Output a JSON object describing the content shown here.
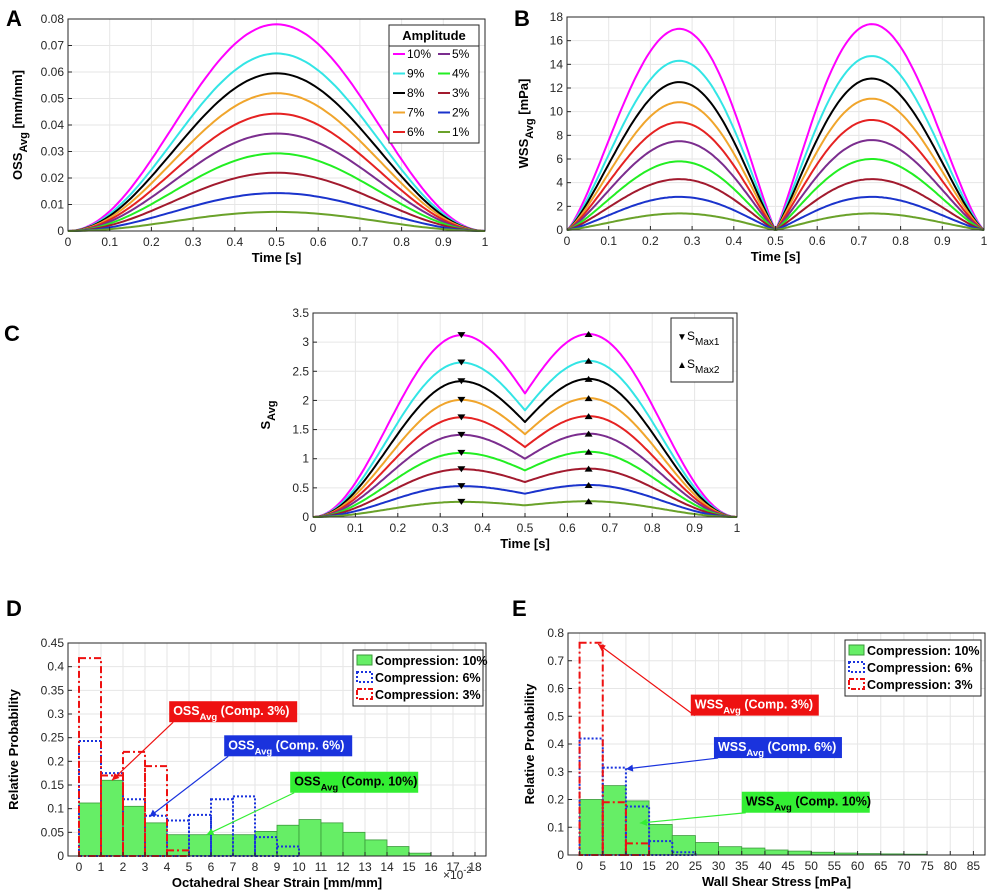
{
  "chart_data": [
    {
      "panel": "A",
      "type": "line",
      "xlabel": "Time [s]",
      "ylabel": "OSS",
      "ylabel_sub": "Avg",
      "ylabel_unit": " [mm/mm]",
      "xlim": [
        0,
        1
      ],
      "ylim": [
        0,
        0.08
      ],
      "xticks": [
        "0",
        "0.1",
        "0.2",
        "0.3",
        "0.4",
        "0.5",
        "0.6",
        "0.7",
        "0.8",
        "0.9",
        "1"
      ],
      "yticks": [
        "0",
        "0.01",
        "0.02",
        "0.03",
        "0.04",
        "0.05",
        "0.06",
        "0.07",
        "0.08"
      ],
      "grid": true,
      "legend_title": "Amplitude",
      "legend_position": "top-right",
      "series": [
        {
          "name": "10%",
          "color": "#ff00ff",
          "peak": 0.078
        },
        {
          "name": "9%",
          "color": "#33e5e5",
          "peak": 0.067
        },
        {
          "name": "8%",
          "color": "#000000",
          "peak": 0.0595
        },
        {
          "name": "7%",
          "color": "#f0a52c",
          "peak": 0.052
        },
        {
          "name": "6%",
          "color": "#e52222",
          "peak": 0.0443
        },
        {
          "name": "5%",
          "color": "#7b2d8e",
          "peak": 0.0368
        },
        {
          "name": "4%",
          "color": "#22ee22",
          "peak": 0.0293
        },
        {
          "name": "3%",
          "color": "#a21a2e",
          "peak": 0.022
        },
        {
          "name": "2%",
          "color": "#1a33cc",
          "peak": 0.0143
        },
        {
          "name": "1%",
          "color": "#6aa22a",
          "peak": 0.0072
        }
      ]
    },
    {
      "panel": "B",
      "type": "line",
      "xlabel": "Time [s]",
      "ylabel": "WSS",
      "ylabel_sub": "Avg",
      "ylabel_unit": " [mPa]",
      "xlim": [
        0,
        1
      ],
      "ylim": [
        0,
        18
      ],
      "xticks": [
        "0",
        "0.1",
        "0.2",
        "0.3",
        "0.4",
        "0.5",
        "0.6",
        "0.7",
        "0.8",
        "0.9",
        "1"
      ],
      "yticks": [
        "0",
        "2",
        "4",
        "6",
        "8",
        "10",
        "12",
        "14",
        "16",
        "18"
      ],
      "grid": true,
      "series": [
        {
          "name": "10%",
          "peak1": 17.0,
          "peak2": 17.4
        },
        {
          "name": "9%",
          "peak1": 14.3,
          "peak2": 14.7
        },
        {
          "name": "8%",
          "peak1": 12.5,
          "peak2": 12.8
        },
        {
          "name": "7%",
          "peak1": 10.8,
          "peak2": 11.1
        },
        {
          "name": "6%",
          "peak1": 9.1,
          "peak2": 9.3
        },
        {
          "name": "5%",
          "peak1": 7.5,
          "peak2": 7.6
        },
        {
          "name": "4%",
          "peak1": 5.8,
          "peak2": 6.0
        },
        {
          "name": "3%",
          "peak1": 4.3,
          "peak2": 4.3
        },
        {
          "name": "2%",
          "peak1": 2.8,
          "peak2": 2.8
        },
        {
          "name": "1%",
          "peak1": 1.4,
          "peak2": 1.4
        }
      ]
    },
    {
      "panel": "C",
      "type": "line",
      "xlabel": "Time [s]",
      "ylabel": "S",
      "ylabel_sub": "Avg",
      "xlim": [
        0,
        1
      ],
      "ylim": [
        0,
        3.5
      ],
      "xticks": [
        "0",
        "0.1",
        "0.2",
        "0.3",
        "0.4",
        "0.5",
        "0.6",
        "0.7",
        "0.8",
        "0.9",
        "1"
      ],
      "yticks": [
        "0",
        "0.5",
        "1",
        "1.5",
        "2",
        "2.5",
        "3",
        "3.5"
      ],
      "grid": true,
      "legend_position": "top-right",
      "legend": [
        {
          "marker": "▼",
          "label": "S",
          "sub": "Max1"
        },
        {
          "marker": "▲",
          "label": "S",
          "sub": "Max2"
        }
      ],
      "smax1_time": 0.35,
      "smax2_time": 0.65,
      "series": [
        {
          "name": "10%",
          "peak1": 3.12,
          "peak2": 3.14,
          "mid": 2.12
        },
        {
          "name": "9%",
          "peak1": 2.65,
          "peak2": 2.68,
          "mid": 1.83
        },
        {
          "name": "8%",
          "peak1": 2.33,
          "peak2": 2.37,
          "mid": 1.63
        },
        {
          "name": "7%",
          "peak1": 2.01,
          "peak2": 2.04,
          "mid": 1.42
        },
        {
          "name": "6%",
          "peak1": 1.71,
          "peak2": 1.73,
          "mid": 1.2
        },
        {
          "name": "5%",
          "peak1": 1.41,
          "peak2": 1.43,
          "mid": 1.0
        },
        {
          "name": "4%",
          "peak1": 1.1,
          "peak2": 1.12,
          "mid": 0.8
        },
        {
          "name": "3%",
          "peak1": 0.82,
          "peak2": 0.83,
          "mid": 0.6
        },
        {
          "name": "2%",
          "peak1": 0.53,
          "peak2": 0.55,
          "mid": 0.4
        },
        {
          "name": "1%",
          "peak1": 0.26,
          "peak2": 0.27,
          "mid": 0.2
        }
      ]
    },
    {
      "panel": "D",
      "type": "histogram",
      "xlabel": "Octahedral Shear Strain [mm/mm]",
      "xscale_label": "×10",
      "xscale_exp": "-2",
      "ylabel": "Relative Probability",
      "xlim": [
        -0.5,
        18.5
      ],
      "ylim": [
        0,
        0.45
      ],
      "xticks": [
        "0",
        "1",
        "2",
        "3",
        "4",
        "5",
        "6",
        "7",
        "8",
        "9",
        "10",
        "11",
        "12",
        "13",
        "14",
        "15",
        "16",
        "17",
        "18"
      ],
      "yticks": [
        "0",
        "0.05",
        "0.1",
        "0.15",
        "0.2",
        "0.25",
        "0.3",
        "0.35",
        "0.4",
        "0.45"
      ],
      "grid": true,
      "legend_position": "top-right",
      "series": [
        {
          "name": "Compression: 10%",
          "style": "filled",
          "color": "#66ee66",
          "bin_start": 0,
          "bin_width": 1,
          "values": [
            0.112,
            0.16,
            0.105,
            0.07,
            0.045,
            0.045,
            0.045,
            0.045,
            0.052,
            0.065,
            0.077,
            0.07,
            0.05,
            0.034,
            0.02,
            0.006
          ]
        },
        {
          "name": "Compression: 6%",
          "style": "dotted",
          "color": "#1a33dd",
          "bin_start": 0,
          "bin_width": 1,
          "values": [
            0.243,
            0.175,
            0.12,
            0.085,
            0.075,
            0.087,
            0.12,
            0.126,
            0.04,
            0.02,
            0.0
          ]
        },
        {
          "name": "Compression: 3%",
          "style": "dashdot",
          "color": "#ee1111",
          "bin_start": 0,
          "bin_width": 1,
          "values": [
            0.418,
            0.17,
            0.22,
            0.19,
            0.012,
            0.0
          ]
        }
      ],
      "annotations": [
        {
          "label": "OSS",
          "sub": "Avg",
          "suffix": " (Comp. 3%)",
          "bg": "#ee1111",
          "fg": "#ffffff",
          "box": [
            4.1,
            0.327
          ],
          "target": [
            1.5,
            0.16
          ]
        },
        {
          "label": "OSS",
          "sub": "Avg",
          "suffix": " (Comp. 6%)",
          "bg": "#1a33dd",
          "fg": "#ffffff",
          "box": [
            6.6,
            0.255
          ],
          "target": [
            3.2,
            0.083
          ]
        },
        {
          "label": "OSS",
          "sub": "Avg",
          "suffix": " (Comp. 10%)",
          "bg": "#33ee33",
          "fg": "#000000",
          "box": [
            9.6,
            0.178
          ],
          "target": [
            5.8,
            0.045
          ]
        }
      ]
    },
    {
      "panel": "E",
      "type": "histogram",
      "xlabel": "Wall Shear Stress [mPa]",
      "ylabel": "Relative Probability",
      "xlim": [
        -2.5,
        87.5
      ],
      "ylim": [
        0,
        0.8
      ],
      "xticks": [
        "0",
        "5",
        "10",
        "15",
        "20",
        "25",
        "30",
        "35",
        "40",
        "45",
        "50",
        "55",
        "60",
        "65",
        "70",
        "75",
        "80",
        "85"
      ],
      "yticks": [
        "0",
        "0.1",
        "0.2",
        "0.3",
        "0.4",
        "0.5",
        "0.6",
        "0.7",
        "0.8"
      ],
      "grid": true,
      "legend_position": "top-right",
      "series": [
        {
          "name": "Compression: 10%",
          "style": "filled",
          "color": "#66ee66",
          "bin_start": 0,
          "bin_width": 5,
          "values": [
            0.2,
            0.25,
            0.195,
            0.11,
            0.07,
            0.045,
            0.03,
            0.025,
            0.018,
            0.014,
            0.01,
            0.007,
            0.005,
            0.004,
            0.003
          ]
        },
        {
          "name": "Compression: 6%",
          "style": "dotted",
          "color": "#1a33dd",
          "bin_start": 0,
          "bin_width": 5,
          "values": [
            0.42,
            0.315,
            0.175,
            0.05,
            0.01,
            0.0
          ]
        },
        {
          "name": "Compression: 3%",
          "style": "dashdot",
          "color": "#ee1111",
          "bin_start": 0,
          "bin_width": 5,
          "values": [
            0.765,
            0.19,
            0.042,
            0.0
          ]
        }
      ],
      "annotations": [
        {
          "label": "WSS",
          "sub": "Avg",
          "suffix": " (Comp. 3%)",
          "bg": "#ee1111",
          "fg": "#ffffff",
          "box": [
            24,
            0.578
          ],
          "target": [
            4,
            0.76
          ]
        },
        {
          "label": "WSS",
          "sub": "Avg",
          "suffix": " (Comp. 6%)",
          "bg": "#1a33dd",
          "fg": "#ffffff",
          "box": [
            29,
            0.425
          ],
          "target": [
            10,
            0.31
          ]
        },
        {
          "label": "WSS",
          "sub": "Avg",
          "suffix": " (Comp. 10%)",
          "bg": "#33ee33",
          "fg": "#000000",
          "box": [
            35,
            0.228
          ],
          "target": [
            13,
            0.115
          ]
        }
      ]
    }
  ],
  "panel_labels": [
    "A",
    "B",
    "C",
    "D",
    "E"
  ]
}
